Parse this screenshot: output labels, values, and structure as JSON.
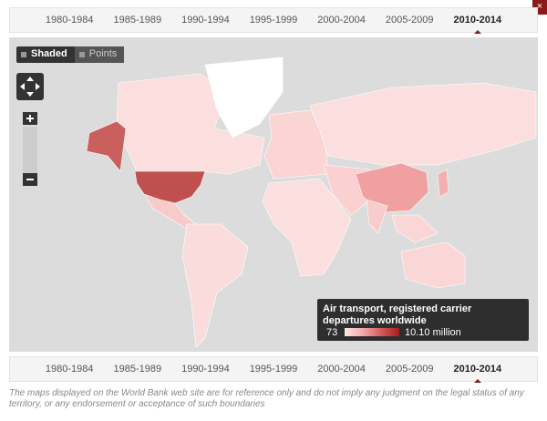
{
  "periods": [
    "1980-1984",
    "1985-1989",
    "1990-1994",
    "1995-1999",
    "2000-2004",
    "2005-2009",
    "2010-2014"
  ],
  "view_modes": [
    "Shaded",
    "Points"
  ],
  "legend": {
    "title": "Air transport, registered carrier departures worldwide",
    "min": 73,
    "max": "10.10 million"
  },
  "disclaimer": "The maps displayed on the World Bank web site are for reference only and do not imply any judgment on the legal status of any territory, or any endorsement or acceptance of such boundaries"
}
